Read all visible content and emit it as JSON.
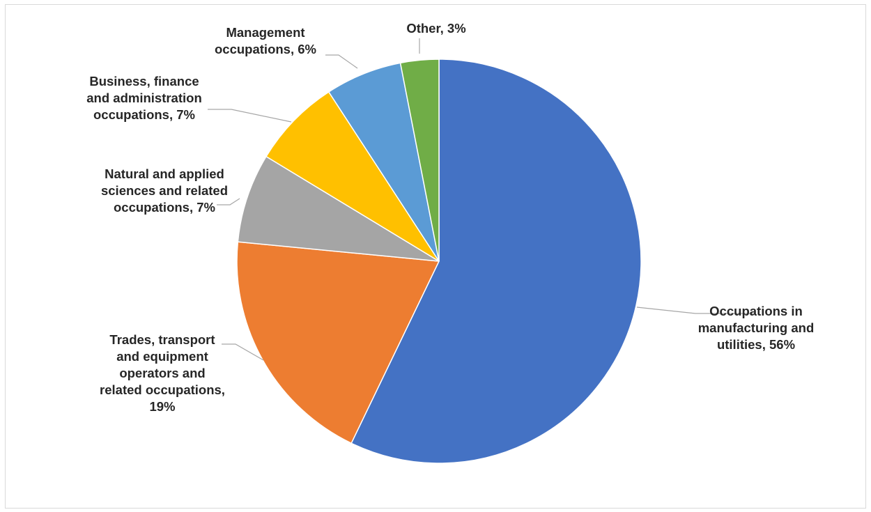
{
  "chart_data": {
    "type": "pie",
    "title": "",
    "start_angle_deg": 0,
    "direction": "clockwise",
    "legend": "none",
    "slices": [
      {
        "label_lines": [
          "Occupations in",
          "manufacturing and",
          "utilities, 56%"
        ],
        "value": 56,
        "color": "#4472c4"
      },
      {
        "label_lines": [
          "Trades, transport",
          "and equipment",
          "operators and",
          "related occupations,",
          "19%"
        ],
        "value": 19,
        "color": "#ed7d31"
      },
      {
        "label_lines": [
          "Natural and applied",
          "sciences and related",
          "occupations, 7%"
        ],
        "value": 7,
        "color": "#a5a5a5"
      },
      {
        "label_lines": [
          "Business, finance",
          "and administration",
          "occupations, 7%"
        ],
        "value": 7,
        "color": "#ffc000"
      },
      {
        "label_lines": [
          "Management",
          "occupations, 6%"
        ],
        "value": 6,
        "color": "#5b9bd5"
      },
      {
        "label_lines": [
          "Other, 3%"
        ],
        "value": 3,
        "color": "#70ad47"
      }
    ]
  }
}
